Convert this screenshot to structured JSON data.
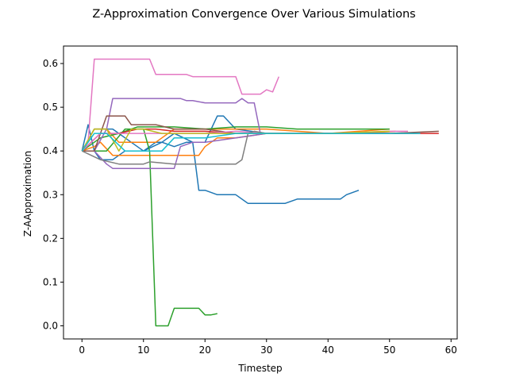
{
  "chart_data": {
    "type": "line",
    "title": "Z-Approximation Convergence Over Various Simulations",
    "xlabel": "Timestep",
    "ylabel": "Z-AApproximation",
    "xlim": [
      -3,
      61
    ],
    "ylim": [
      -0.03,
      0.64
    ],
    "xticks": [
      0,
      10,
      20,
      30,
      40,
      50,
      60
    ],
    "yticks": [
      0.0,
      0.1,
      0.2,
      0.3,
      0.4,
      0.5,
      0.6
    ],
    "ytick_labels": [
      "0.0",
      "0.1",
      "0.2",
      "0.3",
      "0.4",
      "0.5",
      "0.6"
    ],
    "grid": false,
    "legend": "none",
    "series": [
      {
        "color": "#1f77b4",
        "x": [
          0,
          1,
          2,
          3,
          5,
          7,
          8,
          10,
          12,
          13,
          15,
          18,
          19,
          20,
          22,
          23,
          25,
          27,
          30,
          33,
          35,
          37,
          40,
          42,
          43,
          45
        ],
        "y": [
          0.4,
          0.46,
          0.4,
          0.38,
          0.38,
          0.4,
          0.4,
          0.4,
          0.42,
          0.42,
          0.44,
          0.42,
          0.31,
          0.31,
          0.3,
          0.3,
          0.3,
          0.28,
          0.28,
          0.28,
          0.29,
          0.29,
          0.29,
          0.29,
          0.3,
          0.31
        ]
      },
      {
        "color": "#1f77b4",
        "x": [
          0,
          2,
          5,
          8,
          10,
          13,
          15,
          17,
          20,
          22,
          23,
          25,
          30,
          35,
          40,
          45,
          50
        ],
        "y": [
          0.4,
          0.45,
          0.45,
          0.42,
          0.4,
          0.42,
          0.41,
          0.42,
          0.42,
          0.48,
          0.48,
          0.45,
          0.44,
          0.44,
          0.44,
          0.44,
          0.44
        ]
      },
      {
        "color": "#ff7f0e",
        "x": [
          0,
          2,
          3,
          5,
          7,
          10,
          13,
          15,
          17,
          19,
          20,
          22,
          25,
          30,
          35,
          40,
          45,
          51
        ],
        "y": [
          0.4,
          0.41,
          0.42,
          0.39,
          0.39,
          0.39,
          0.39,
          0.39,
          0.39,
          0.39,
          0.41,
          0.43,
          0.43,
          0.44,
          0.44,
          0.44,
          0.44,
          0.445
        ]
      },
      {
        "color": "#ff7f0e",
        "x": [
          0,
          2,
          4,
          6,
          9,
          12,
          15,
          20,
          25,
          30,
          40,
          50
        ],
        "y": [
          0.4,
          0.45,
          0.45,
          0.42,
          0.42,
          0.42,
          0.45,
          0.45,
          0.45,
          0.45,
          0.44,
          0.45
        ]
      },
      {
        "color": "#2ca02c",
        "x": [
          0,
          2,
          4,
          7,
          9,
          10,
          11,
          12,
          13,
          14,
          15,
          16,
          18,
          19,
          20,
          21,
          22
        ],
        "y": [
          0.4,
          0.4,
          0.4,
          0.45,
          0.45,
          0.45,
          0.4,
          0.0,
          0.0,
          0.0,
          0.04,
          0.04,
          0.04,
          0.04,
          0.025,
          0.025,
          0.028
        ]
      },
      {
        "color": "#2ca02c",
        "x": [
          0,
          3,
          6,
          9,
          12,
          15,
          20,
          25,
          30,
          35,
          40,
          45,
          50
        ],
        "y": [
          0.4,
          0.43,
          0.44,
          0.455,
          0.455,
          0.455,
          0.45,
          0.455,
          0.455,
          0.45,
          0.45,
          0.45,
          0.45
        ]
      },
      {
        "color": "#d62728",
        "x": [
          0,
          3,
          6,
          9,
          12,
          15,
          20,
          25,
          30,
          40,
          50,
          58
        ],
        "y": [
          0.4,
          0.44,
          0.44,
          0.45,
          0.45,
          0.445,
          0.445,
          0.44,
          0.44,
          0.44,
          0.44,
          0.44
        ]
      },
      {
        "color": "#9467bd",
        "x": [
          0,
          2,
          4,
          5,
          8,
          10,
          13,
          16,
          17,
          18,
          20,
          22,
          23,
          24,
          25,
          26,
          27,
          28,
          29,
          30,
          35,
          40,
          50
        ],
        "y": [
          0.4,
          0.4,
          0.45,
          0.52,
          0.52,
          0.52,
          0.52,
          0.52,
          0.515,
          0.515,
          0.51,
          0.51,
          0.51,
          0.51,
          0.51,
          0.52,
          0.51,
          0.51,
          0.44,
          0.44,
          0.44,
          0.44,
          0.44
        ]
      },
      {
        "color": "#9467bd",
        "x": [
          0,
          2,
          4,
          5,
          7,
          10,
          13,
          15,
          16,
          18,
          20,
          25,
          30,
          40,
          50
        ],
        "y": [
          0.4,
          0.4,
          0.37,
          0.36,
          0.36,
          0.36,
          0.36,
          0.36,
          0.41,
          0.42,
          0.42,
          0.43,
          0.44,
          0.44,
          0.44
        ]
      },
      {
        "color": "#8c564b",
        "x": [
          0,
          2,
          4,
          7,
          8,
          10,
          12,
          15,
          20,
          25,
          30,
          40,
          50,
          58
        ],
        "y": [
          0.4,
          0.4,
          0.48,
          0.48,
          0.46,
          0.46,
          0.46,
          0.45,
          0.45,
          0.44,
          0.44,
          0.44,
          0.44,
          0.445
        ]
      },
      {
        "color": "#e377c2",
        "x": [
          0,
          1,
          2,
          5,
          8,
          11,
          12,
          15,
          17,
          18,
          20,
          23,
          25,
          26,
          28,
          29,
          30,
          31,
          32
        ],
        "y": [
          0.4,
          0.42,
          0.61,
          0.61,
          0.61,
          0.61,
          0.575,
          0.575,
          0.575,
          0.57,
          0.57,
          0.57,
          0.57,
          0.53,
          0.53,
          0.53,
          0.54,
          0.535,
          0.57
        ]
      },
      {
        "color": "#e377c2",
        "x": [
          0,
          3,
          6,
          10,
          15,
          20,
          25,
          30,
          40,
          50,
          53
        ],
        "y": [
          0.4,
          0.44,
          0.44,
          0.44,
          0.44,
          0.44,
          0.445,
          0.44,
          0.44,
          0.445,
          0.445
        ]
      },
      {
        "color": "#7f7f7f",
        "x": [
          0,
          3,
          6,
          10,
          11,
          15,
          20,
          25,
          26,
          27,
          28,
          30,
          40,
          50
        ],
        "y": [
          0.4,
          0.38,
          0.37,
          0.37,
          0.375,
          0.37,
          0.37,
          0.37,
          0.38,
          0.44,
          0.445,
          0.44,
          0.44,
          0.44
        ]
      },
      {
        "color": "#bcbd22",
        "x": [
          0,
          2,
          4,
          6,
          8,
          10,
          13,
          15,
          20,
          25,
          30,
          40,
          50
        ],
        "y": [
          0.4,
          0.45,
          0.45,
          0.4,
          0.45,
          0.45,
          0.44,
          0.44,
          0.44,
          0.44,
          0.44,
          0.44,
          0.445
        ]
      },
      {
        "color": "#17becf",
        "x": [
          0,
          2,
          4,
          7,
          10,
          13,
          15,
          20,
          25,
          30,
          40,
          50,
          55
        ],
        "y": [
          0.4,
          0.44,
          0.44,
          0.4,
          0.4,
          0.4,
          0.43,
          0.43,
          0.44,
          0.44,
          0.44,
          0.44,
          0.44
        ]
      }
    ]
  }
}
